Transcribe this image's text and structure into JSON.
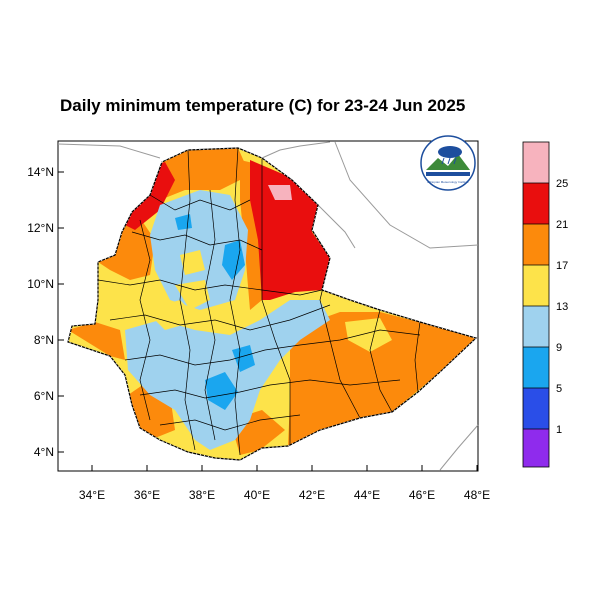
{
  "title": "Daily minimum temperature (C) for 23-24 Jun 2025",
  "axes": {
    "lat_ticks": [
      "14°N",
      "12°N",
      "10°N",
      "8°N",
      "6°N",
      "4°N"
    ],
    "lon_ticks": [
      "34°E",
      "36°E",
      "38°E",
      "40°E",
      "42°E",
      "44°E",
      "46°E",
      "48°E"
    ]
  },
  "colorbar": {
    "labels": [
      "1",
      "5",
      "9",
      "13",
      "17",
      "21",
      "25"
    ],
    "colors": [
      "#8f2bed",
      "#2a4ee8",
      "#1aa6ef",
      "#9fd2ee",
      "#fde34a",
      "#fc8a0c",
      "#e90e0e",
      "#f7b3be"
    ]
  },
  "logo": {
    "name": "ethiopian-meteorology-institute-logo",
    "text": "Ethiopian Meteorology Institute"
  }
}
